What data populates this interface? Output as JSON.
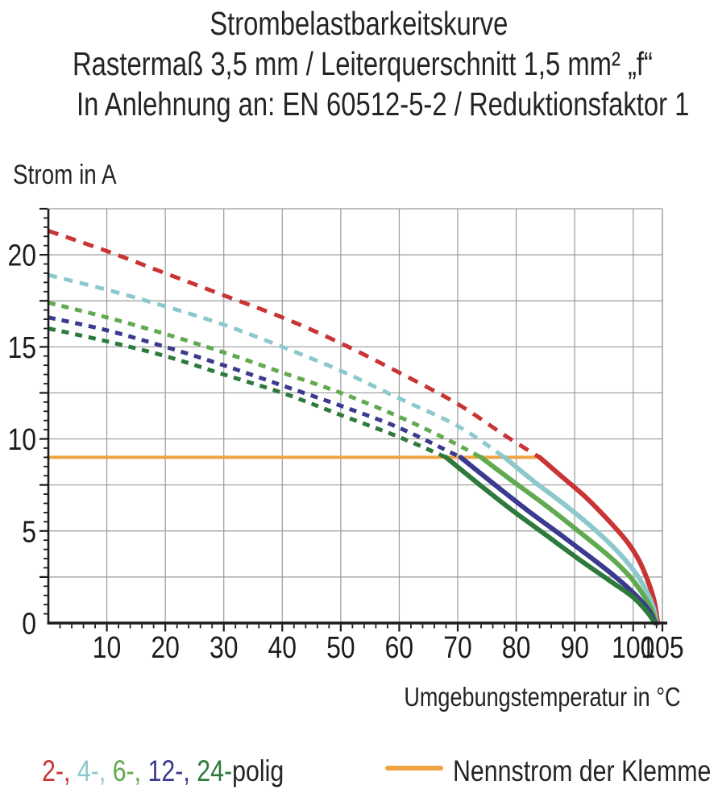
{
  "header": {
    "line1": "Strombelastbarkeitskurve",
    "line2": "Rastermaß 3,5 mm / Leiterquerschnitt 1,5 mm² „f“",
    "line3": "In Anlehnung an: EN 60512-5-2 / Reduktionsfaktor 1"
  },
  "legend": {
    "poles": [
      {
        "label": "2-",
        "color": "#c93434"
      },
      {
        "label": "4-",
        "color": "#8cc9cd"
      },
      {
        "label": "6-",
        "color": "#62aa50"
      },
      {
        "label": "12-",
        "color": "#3b3a8f"
      },
      {
        "label": "24-",
        "color": "#2d7a3c"
      }
    ],
    "separator": ", ",
    "suffix": "polig",
    "suffix_color": "#242424"
  },
  "chart_data": {
    "type": "line",
    "title": "Strombelastbarkeitskurve – Rastermaß 3,5 mm / Leiterquerschnitt 1,5 mm² „f“ – In Anlehnung an: EN 60512-5-2 / Reduktionsfaktor 1",
    "xlabel": "Umgebungstemperatur in °C",
    "ylabel": "Strom in A",
    "xlim": [
      0,
      105
    ],
    "ylim": [
      0,
      22.5
    ],
    "x_tick_labels": [
      10,
      20,
      30,
      40,
      50,
      60,
      70,
      80,
      90,
      100,
      105
    ],
    "y_tick_labels": [
      0,
      5,
      10,
      15,
      20
    ],
    "x_minor_step": 2,
    "y_minor_step": 0.5,
    "grid": {
      "x_step": 10,
      "y_step": 2.5,
      "on": true,
      "color": "#9a9a9a"
    },
    "colors": {
      "axis": "#1c1c1c",
      "grid": "#9a9a9a",
      "text": "#242424"
    },
    "legend_position": "bottom",
    "rated_current": {
      "name": "Nennstrom der Klemme",
      "value": 9,
      "x_range": [
        0,
        84
      ],
      "color": "#f0a441"
    },
    "series": [
      {
        "name": "2-polig",
        "color": "#c93434",
        "dash": "13 10",
        "dashed": [
          [
            0,
            21.3
          ],
          [
            10,
            20.2
          ],
          [
            20,
            19.0
          ],
          [
            30,
            17.8
          ],
          [
            40,
            16.6
          ],
          [
            50,
            15.2
          ],
          [
            60,
            13.6
          ],
          [
            70,
            11.9
          ],
          [
            78,
            10.2
          ],
          [
            84,
            9.0
          ]
        ],
        "solid": [
          [
            84,
            9.0
          ],
          [
            88,
            7.9
          ],
          [
            92,
            6.8
          ],
          [
            96,
            5.5
          ],
          [
            99,
            4.4
          ],
          [
            101,
            3.4
          ],
          [
            102.5,
            2.3
          ],
          [
            103.6,
            1.2
          ],
          [
            104.2,
            0.0
          ]
        ]
      },
      {
        "name": "4-polig",
        "color": "#8cc9cd",
        "dash": "11 9",
        "dashed": [
          [
            0,
            18.9
          ],
          [
            10,
            18.1
          ],
          [
            20,
            17.2
          ],
          [
            30,
            16.2
          ],
          [
            40,
            15.0
          ],
          [
            50,
            13.7
          ],
          [
            60,
            12.2
          ],
          [
            70,
            10.7
          ],
          [
            78,
            9.0
          ]
        ],
        "solid": [
          [
            78,
            9.0
          ],
          [
            83,
            7.7
          ],
          [
            88,
            6.5
          ],
          [
            93,
            5.2
          ],
          [
            97,
            4.0
          ],
          [
            100,
            2.9
          ],
          [
            102,
            1.9
          ],
          [
            103.4,
            0.9
          ],
          [
            104.0,
            0.0
          ]
        ]
      },
      {
        "name": "6-polig",
        "color": "#62aa50",
        "dash": "9 8",
        "dashed": [
          [
            0,
            17.4
          ],
          [
            10,
            16.6
          ],
          [
            20,
            15.7
          ],
          [
            30,
            14.7
          ],
          [
            40,
            13.6
          ],
          [
            50,
            12.5
          ],
          [
            60,
            11.2
          ],
          [
            68,
            10.0
          ],
          [
            74,
            9.0
          ]
        ],
        "solid": [
          [
            74,
            9.0
          ],
          [
            79,
            7.8
          ],
          [
            85,
            6.4
          ],
          [
            91,
            4.9
          ],
          [
            96,
            3.6
          ],
          [
            99.5,
            2.5
          ],
          [
            101.8,
            1.5
          ],
          [
            103.2,
            0.7
          ],
          [
            103.9,
            0.0
          ]
        ]
      },
      {
        "name": "12-polig",
        "color": "#3b3a8f",
        "dash": "9 8",
        "dashed": [
          [
            0,
            16.6
          ],
          [
            10,
            15.9
          ],
          [
            20,
            15.0
          ],
          [
            30,
            14.0
          ],
          [
            40,
            12.9
          ],
          [
            50,
            11.8
          ],
          [
            60,
            10.6
          ],
          [
            70.5,
            9.0
          ]
        ],
        "solid": [
          [
            70.5,
            9.0
          ],
          [
            76,
            7.6
          ],
          [
            82,
            6.1
          ],
          [
            88,
            4.7
          ],
          [
            93,
            3.5
          ],
          [
            97,
            2.5
          ],
          [
            100.5,
            1.5
          ],
          [
            102.7,
            0.7
          ],
          [
            103.8,
            0.0
          ]
        ]
      },
      {
        "name": "24-polig",
        "color": "#2d7a3c",
        "dash": "9 8",
        "dashed": [
          [
            0,
            16.0
          ],
          [
            10,
            15.3
          ],
          [
            20,
            14.5
          ],
          [
            30,
            13.5
          ],
          [
            40,
            12.5
          ],
          [
            50,
            11.3
          ],
          [
            60,
            10.1
          ],
          [
            68,
            9.0
          ]
        ],
        "solid": [
          [
            68,
            9.0
          ],
          [
            73,
            7.7
          ],
          [
            79,
            6.2
          ],
          [
            85,
            4.8
          ],
          [
            91,
            3.4
          ],
          [
            96,
            2.3
          ],
          [
            100,
            1.4
          ],
          [
            102.4,
            0.6
          ],
          [
            103.7,
            0.0
          ]
        ]
      }
    ]
  }
}
